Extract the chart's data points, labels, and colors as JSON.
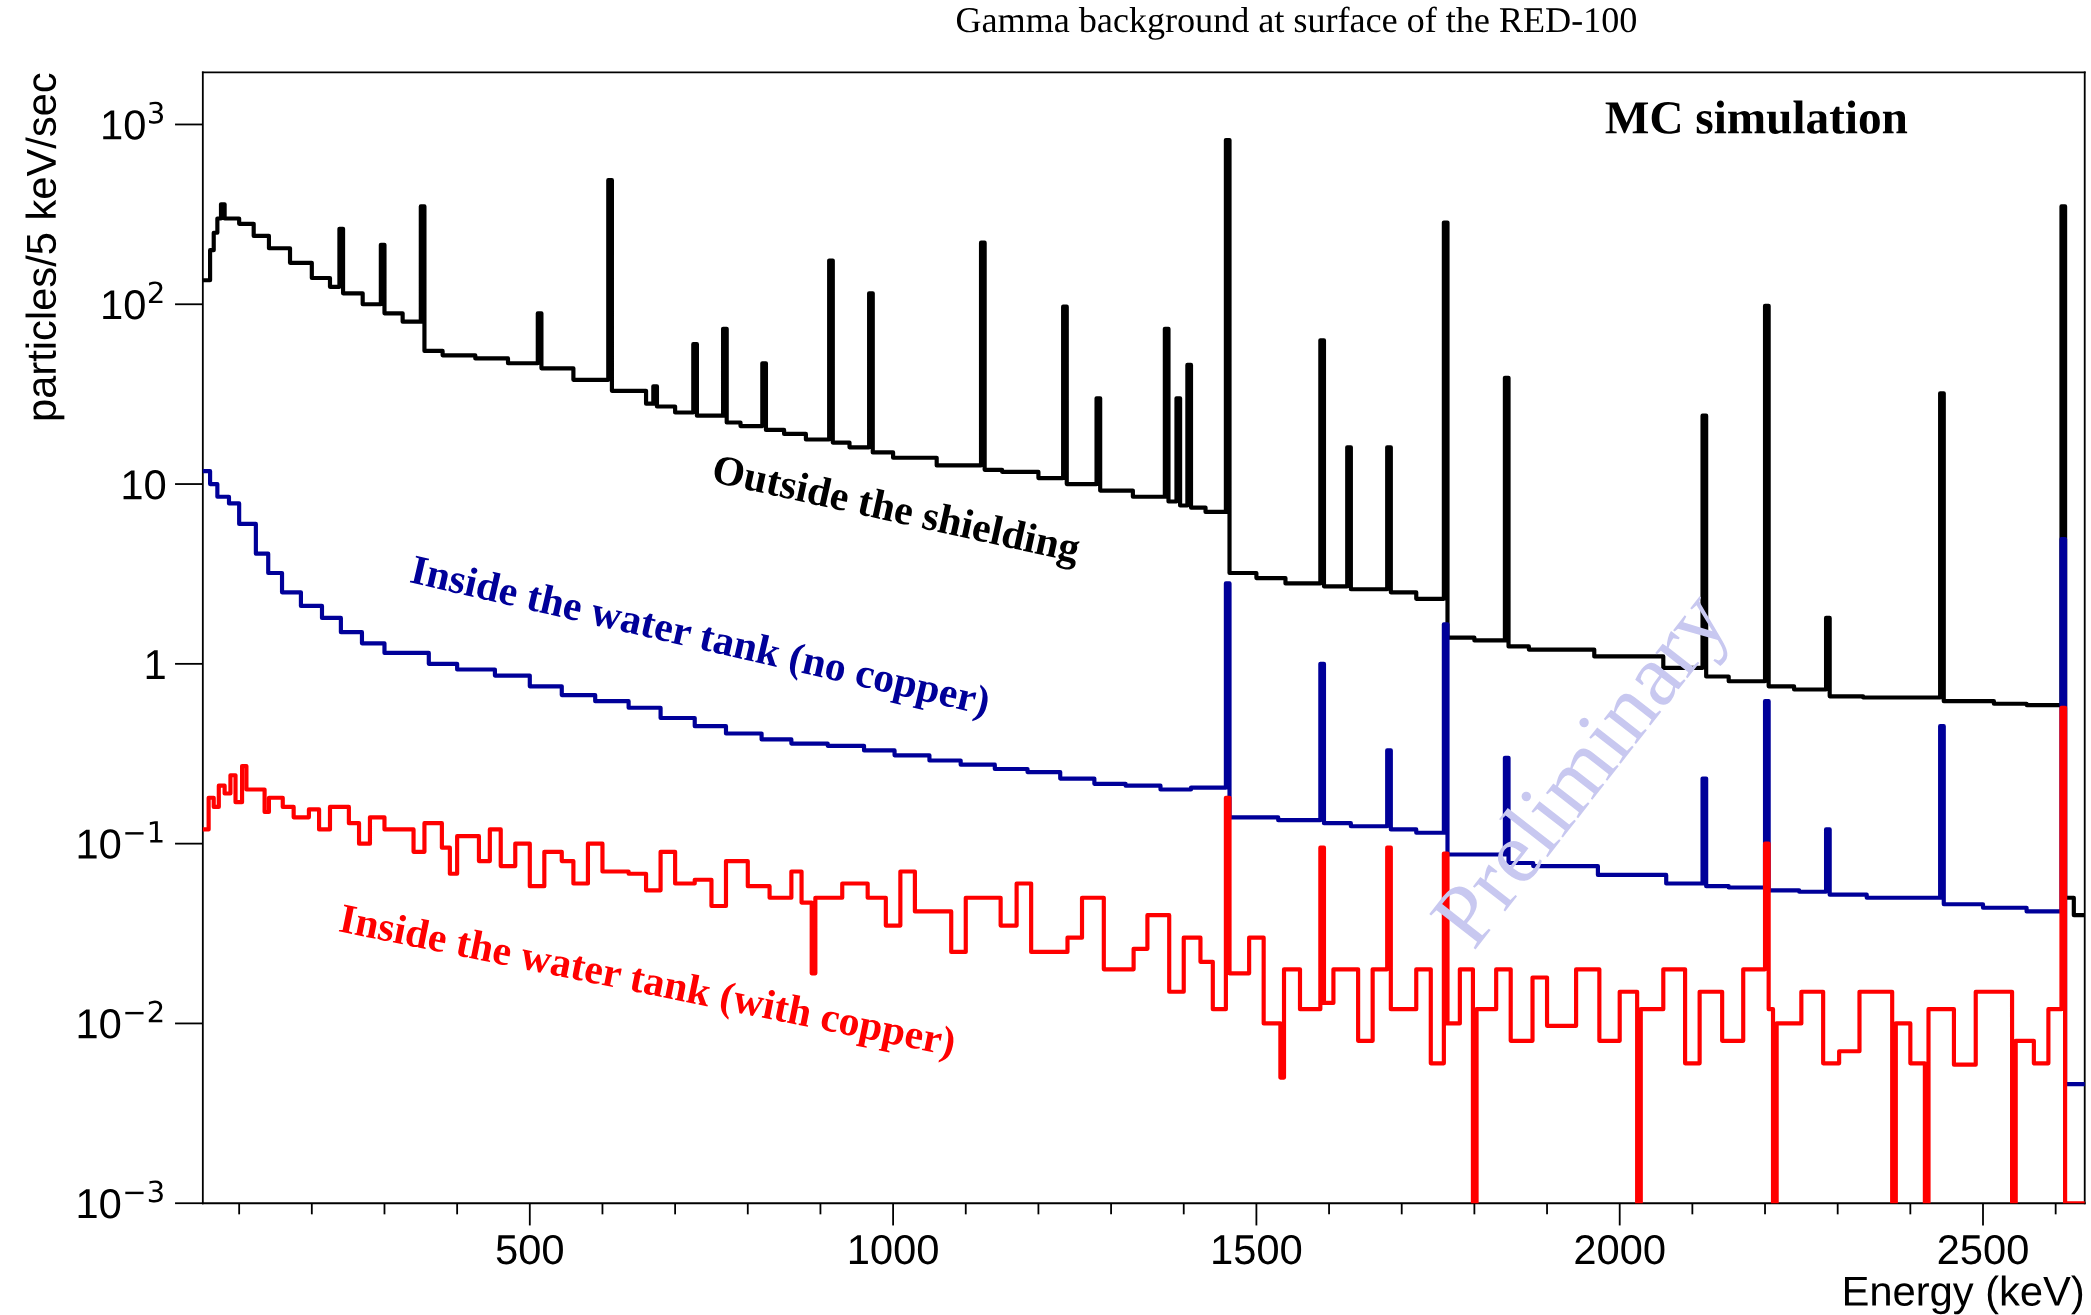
{
  "chart_data": {
    "type": "step",
    "title": "Gamma background at surface of the RED-100",
    "xlabel": "Energy (keV)",
    "ylabel": "particles/5 keV/sec",
    "log": "y",
    "grid": false,
    "legend": false,
    "xlim": [
      50,
      2640
    ],
    "ylim": [
      0.001,
      1950
    ],
    "xticks": [
      {
        "value": 100,
        "label": null
      },
      {
        "value": 200,
        "label": null
      },
      {
        "value": 300,
        "label": null
      },
      {
        "value": 400,
        "label": null
      },
      500,
      {
        "value": 600,
        "label": null
      },
      {
        "value": 700,
        "label": null
      },
      {
        "value": 800,
        "label": null
      },
      {
        "value": 900,
        "label": null
      },
      1000,
      {
        "value": 1100,
        "label": null
      },
      {
        "value": 1200,
        "label": null
      },
      {
        "value": 1300,
        "label": null
      },
      {
        "value": 1400,
        "label": null
      },
      1500,
      {
        "value": 1600,
        "label": null
      },
      {
        "value": 1700,
        "label": null
      },
      {
        "value": 1800,
        "label": null
      },
      {
        "value": 1900,
        "label": null
      },
      2000,
      {
        "value": 2100,
        "label": null
      },
      {
        "value": 2200,
        "label": null
      },
      {
        "value": 2300,
        "label": null
      },
      {
        "value": 2400,
        "label": null
      },
      2500,
      {
        "value": 2600,
        "label": null
      }
    ],
    "yticks": [
      {
        "value": 0.001,
        "label": "10$^{−3}$"
      },
      {
        "value": 0.01,
        "label": "10$^{−2}$"
      },
      {
        "value": 0.1,
        "label": "10$^{−1}$"
      },
      1,
      10,
      {
        "value": 100,
        "label": "10$^{2}$"
      },
      {
        "value": 1000,
        "label": "10$^{3}$"
      }
    ],
    "annotations": [
      "MC simulation",
      "Preliminary"
    ],
    "series": [
      {
        "name": "Outside the shielding",
        "color": "#000000",
        "x": [
          50,
          60,
          65,
          70,
          75,
          80,
          90,
          100,
          120,
          141,
          170,
          200,
          225,
          238,
          243,
          270,
          295,
          300,
          325,
          350,
          355,
          380,
          425,
          470,
          511,
          516,
          560,
          608,
          613,
          660,
          670,
          675,
          700,
          725,
          730,
          766,
          771,
          790,
          820,
          825,
          850,
          880,
          912,
          917,
          940,
          967,
          972,
          1000,
          1060,
          1121,
          1126,
          1150,
          1200,
          1234,
          1239,
          1280,
          1285,
          1330,
          1374,
          1379,
          1390,
          1395,
          1405,
          1410,
          1430,
          1458,
          1463,
          1500,
          1540,
          1588,
          1593,
          1625,
          1630,
          1680,
          1685,
          1720,
          1758,
          1763,
          1800,
          1842,
          1847,
          1875,
          1965,
          2060,
          2114,
          2119,
          2150,
          2200,
          2205,
          2240,
          2284,
          2289,
          2335,
          2441,
          2446,
          2515,
          2560,
          2608,
          2613,
          2625,
          2640
        ],
        "values": [
          136,
          200,
          250,
          300,
          360,
          300,
          300,
          280,
          240,
          205,
          170,
          140,
          125,
          263,
          115,
          100,
          214,
          89,
          80,
          350,
          55,
          52,
          50,
          47,
          89,
          44,
          38,
          490,
          33,
          28,
          35,
          27,
          25,
          60,
          24,
          73,
          22,
          21,
          47,
          20,
          19,
          17.7,
          175,
          17,
          16,
          115,
          15,
          14,
          12.7,
          220,
          12,
          11.7,
          10.8,
          97,
          10,
          30,
          9.2,
          8.5,
          73,
          8,
          30,
          7.6,
          46,
          7.4,
          7,
          820,
          3.2,
          3,
          2.8,
          63,
          2.7,
          16,
          2.6,
          16,
          2.5,
          2.3,
          285,
          1.4,
          1.35,
          39,
          1.25,
          1.2,
          1.1,
          0.95,
          24,
          0.85,
          0.8,
          98,
          0.75,
          0.72,
          1.8,
          0.66,
          0.65,
          32,
          0.62,
          0.6,
          0.59,
          350,
          0.05,
          0.04,
          0.04
        ]
      },
      {
        "name": "Inside the water tank (no copper)",
        "color": "#000099",
        "x": [
          50,
          60,
          70,
          86,
          100,
          123,
          140,
          159,
          185,
          214,
          240,
          269,
          300,
          361,
          400,
          452,
          500,
          544,
          590,
          636,
          680,
          727,
          770,
          819,
          860,
          910,
          960,
          1002,
          1050,
          1093,
          1140,
          1185,
          1230,
          1277,
          1320,
          1368,
          1410,
          1458,
          1463,
          1530,
          1588,
          1593,
          1630,
          1680,
          1685,
          1720,
          1758,
          1763,
          1842,
          1847,
          1881,
          1970,
          2064,
          2114,
          2119,
          2150,
          2200,
          2205,
          2247,
          2284,
          2289,
          2340,
          2441,
          2446,
          2500,
          2560,
          2608,
          2613,
          2640
        ],
        "values": [
          11.8,
          10,
          8.5,
          7.8,
          6,
          4.1,
          3.2,
          2.5,
          2.1,
          1.8,
          1.5,
          1.3,
          1.15,
          1.0,
          0.93,
          0.86,
          0.75,
          0.67,
          0.62,
          0.57,
          0.5,
          0.45,
          0.41,
          0.38,
          0.36,
          0.35,
          0.33,
          0.31,
          0.29,
          0.275,
          0.26,
          0.25,
          0.23,
          0.215,
          0.21,
          0.2,
          0.205,
          2.8,
          0.14,
          0.135,
          1.0,
          0.13,
          0.125,
          0.33,
          0.12,
          0.115,
          1.66,
          0.087,
          0.3,
          0.078,
          0.075,
          0.067,
          0.06,
          0.23,
          0.058,
          0.057,
          0.62,
          0.055,
          0.054,
          0.12,
          0.052,
          0.05,
          0.45,
          0.046,
          0.044,
          0.042,
          4.95,
          0.0046,
          0.0046
        ]
      },
      {
        "name": "Inside the water tank (with copper)",
        "color": "#ff0000",
        "x": [
          50,
          58,
          65,
          72,
          80,
          88,
          95,
          104,
          110,
          125,
          135,
          141,
          160,
          175,
          196,
          210,
          225,
          251,
          265,
          280,
          300,
          324,
          340,
          355,
          379,
          390,
          400,
          430,
          445,
          460,
          480,
          500,
          520,
          544,
          560,
          580,
          600,
          636,
          660,
          680,
          700,
          727,
          750,
          770,
          800,
          830,
          860,
          874,
          888,
          893,
          930,
          965,
          990,
          1010,
          1030,
          1057,
          1080,
          1100,
          1148,
          1170,
          1190,
          1240,
          1260,
          1290,
          1331,
          1350,
          1380,
          1400,
          1423,
          1440,
          1458,
          1463,
          1490,
          1510,
          1533,
          1538,
          1560,
          1588,
          1593,
          1606,
          1640,
          1660,
          1680,
          1685,
          1720,
          1740,
          1758,
          1763,
          1780,
          1798,
          1803,
          1830,
          1850,
          1880,
          1900,
          1940,
          1972,
          2000,
          2024,
          2029,
          2060,
          2090,
          2110,
          2141,
          2170,
          2200,
          2205,
          2211,
          2216,
          2250,
          2280,
          2302,
          2330,
          2375,
          2380,
          2400,
          2420,
          2425,
          2460,
          2490,
          2540,
          2545,
          2570,
          2590,
          2608,
          2613,
          2640
        ],
        "values": [
          0.12,
          0.18,
          0.16,
          0.21,
          0.19,
          0.24,
          0.17,
          0.27,
          0.2,
          0.2,
          0.15,
          0.18,
          0.16,
          0.14,
          0.155,
          0.12,
          0.16,
          0.13,
          0.1,
          0.14,
          0.12,
          0.12,
          0.09,
          0.13,
          0.095,
          0.068,
          0.11,
          0.08,
          0.12,
          0.075,
          0.1,
          0.058,
          0.09,
          0.08,
          0.06,
          0.1,
          0.07,
          0.068,
          0.055,
          0.09,
          0.06,
          0.063,
          0.045,
          0.08,
          0.058,
          0.05,
          0.07,
          0.047,
          0.019,
          0.05,
          0.06,
          0.05,
          0.035,
          0.07,
          0.042,
          0.042,
          0.025,
          0.05,
          0.035,
          0.06,
          0.025,
          0.03,
          0.05,
          0.02,
          0.026,
          0.04,
          0.015,
          0.03,
          0.022,
          0.012,
          0.18,
          0.019,
          0.03,
          0.01,
          0.005,
          0.02,
          0.012,
          0.095,
          0.013,
          0.02,
          0.008,
          0.02,
          0.095,
          0.012,
          0.02,
          0.006,
          0.088,
          0.01,
          0.02,
          0.001,
          0.012,
          0.02,
          0.008,
          0.018,
          0.0097,
          0.02,
          0.008,
          0.015,
          0.001,
          0.012,
          0.02,
          0.006,
          0.015,
          0.008,
          0.02,
          0.1,
          0.012,
          0.001,
          0.01,
          0.015,
          0.006,
          0.007,
          0.015,
          0.001,
          0.01,
          0.006,
          0.001,
          0.012,
          0.0059,
          0.015,
          0.001,
          0.008,
          0.006,
          0.012,
          0.57,
          0.001,
          0.001
        ]
      }
    ]
  }
}
